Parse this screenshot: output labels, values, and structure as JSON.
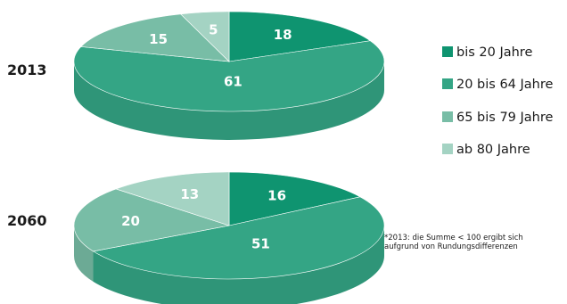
{
  "chart_data": {
    "type": "pie",
    "style": "3d",
    "categories": [
      "bis 20 Jahre",
      "20 bis 64 Jahre",
      "65 bis 79 Jahre",
      "ab 80 Jahre"
    ],
    "colors": [
      "#0f9470",
      "#34a585",
      "#78bda6",
      "#a4d3c3"
    ],
    "series": [
      {
        "name": "2013",
        "values": [
          18,
          61,
          15,
          5
        ]
      },
      {
        "name": "2060",
        "values": [
          16,
          51,
          20,
          13
        ]
      }
    ],
    "legend_placement": "right",
    "footnote_lines": [
      "*2013: die Summe < 100 ergibt sich",
      "aufgrund von Rundungsdifferenzen"
    ]
  }
}
